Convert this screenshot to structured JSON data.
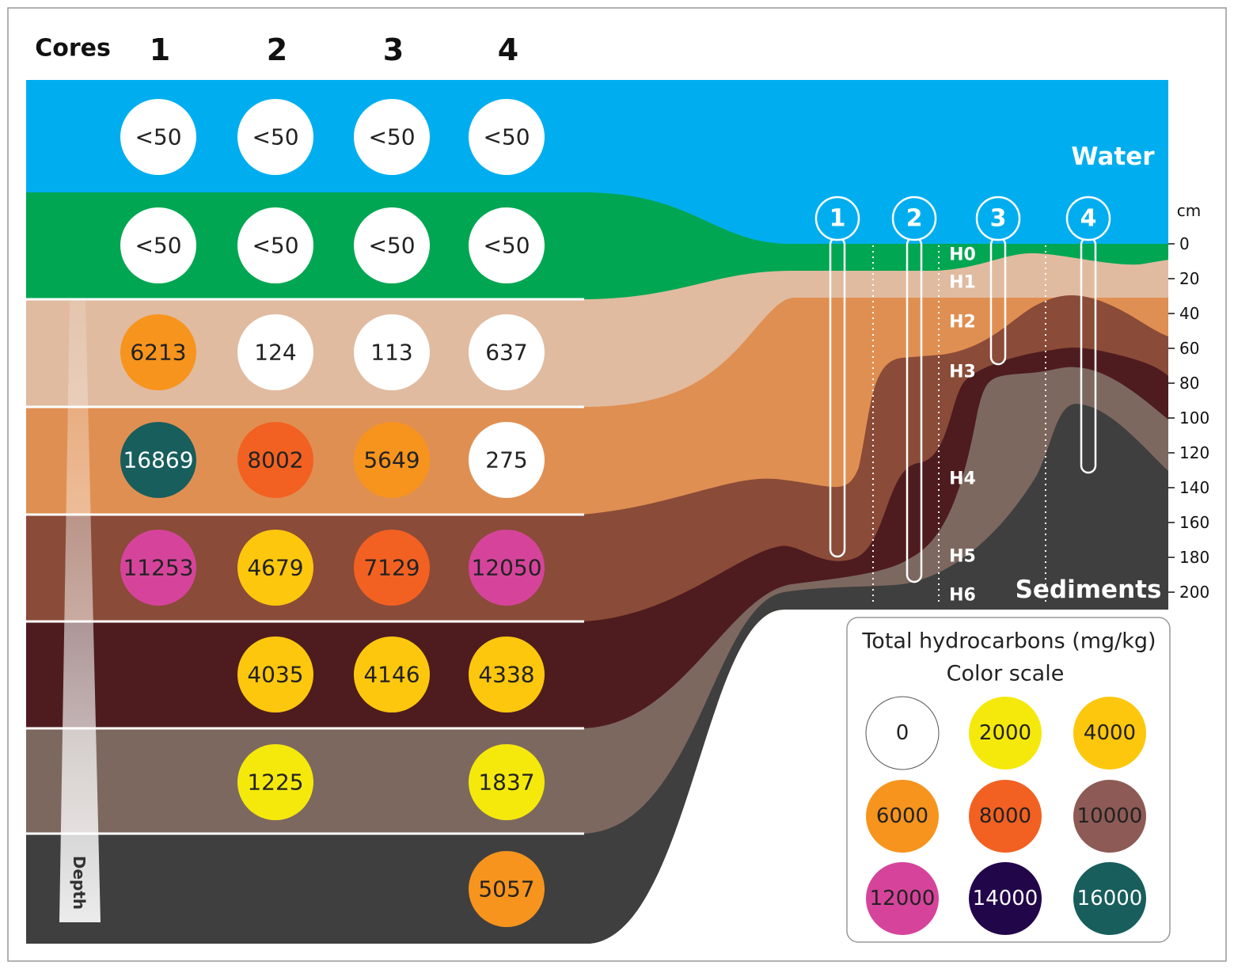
{
  "header": {
    "label": "Cores",
    "cores": [
      "1",
      "2",
      "3",
      "4"
    ]
  },
  "rows": [
    [
      "<50",
      "<50",
      "<50",
      "<50"
    ],
    [
      "<50",
      "<50",
      "<50",
      "<50"
    ],
    [
      "6213",
      "124",
      "113",
      "637"
    ],
    [
      "16869",
      "8002",
      "5649",
      "275"
    ],
    [
      "11253",
      "4679",
      "7129",
      "12050"
    ],
    [
      null,
      "4035",
      "4146",
      "4338"
    ],
    [
      null,
      "1225",
      null,
      "1837"
    ],
    [
      null,
      null,
      null,
      "5057"
    ]
  ],
  "zones": {
    "water": "Water",
    "sediments": "Sediments"
  },
  "horizons": [
    "H0",
    "H1",
    "H2",
    "H3",
    "H4",
    "H5",
    "H6"
  ],
  "core_markers": [
    "1",
    "2",
    "3",
    "4"
  ],
  "depth_axis": {
    "unit": "cm",
    "ticks": [
      0,
      20,
      40,
      60,
      80,
      100,
      120,
      140,
      160,
      180,
      200
    ]
  },
  "depth_label": "Depth",
  "legend": {
    "title": "Total hydrocarbons (mg/kg)",
    "subtitle": "Color scale",
    "items": [
      {
        "label": "0",
        "color": "#ffffff",
        "text": "#222222"
      },
      {
        "label": "2000",
        "color": "#f5e90c",
        "text": "#222222"
      },
      {
        "label": "4000",
        "color": "#fdc70e",
        "text": "#222222"
      },
      {
        "label": "6000",
        "color": "#f7941d",
        "text": "#222222"
      },
      {
        "label": "8000",
        "color": "#f26122",
        "text": "#222222"
      },
      {
        "label": "10000",
        "color": "#8e5a55",
        "text": "#222222"
      },
      {
        "label": "12000",
        "color": "#d5449a",
        "text": "#222222"
      },
      {
        "label": "14000",
        "color": "#22064a",
        "text": "#ffffff"
      },
      {
        "label": "16000",
        "color": "#175e5c",
        "text": "#ffffff"
      }
    ]
  }
}
